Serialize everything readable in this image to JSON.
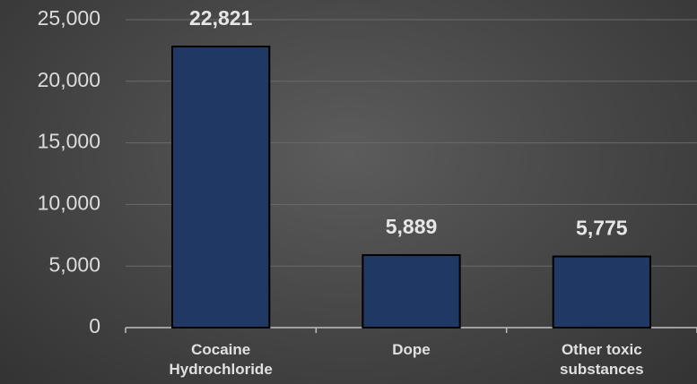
{
  "chart_data": {
    "type": "bar",
    "categories": [
      "Cocaine Hydrochloride",
      "Dope",
      "Other toxic substances"
    ],
    "values": [
      22821,
      5889,
      5775
    ],
    "value_labels": [
      "22,821",
      "5,889",
      "5,775"
    ],
    "color": "#1f3864",
    "ylim": [
      0,
      25000
    ],
    "yticks": [
      0,
      {
        "value": 5000,
        "label": "5,000"
      },
      {
        "value": 10000,
        "label": "10,000"
      },
      {
        "value": 15000,
        "label": "15,000"
      },
      {
        "value": 20000,
        "label": "20,000"
      },
      {
        "value": 25000,
        "label": "25,000"
      }
    ],
    "grid": true
  }
}
